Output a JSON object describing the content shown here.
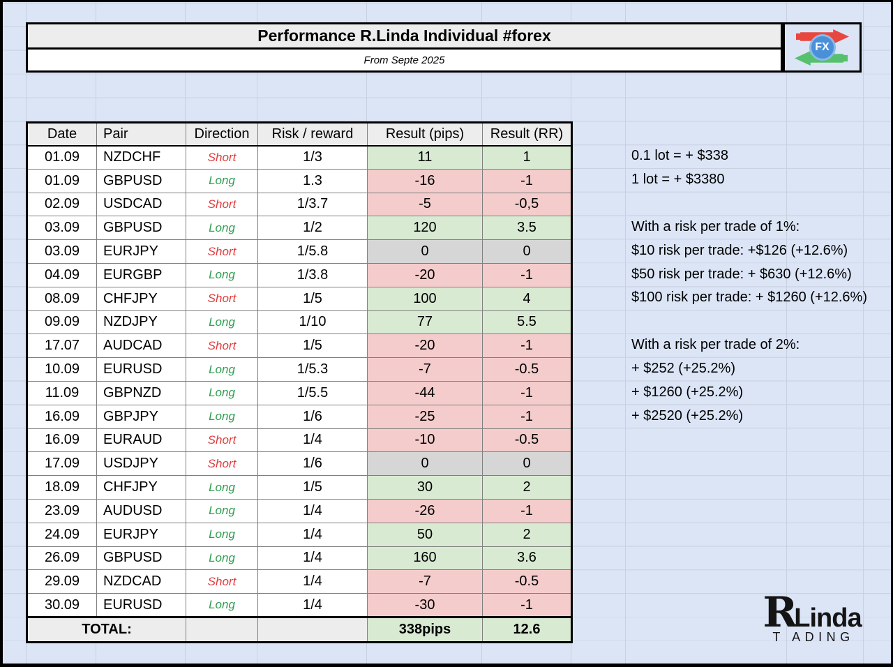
{
  "header": {
    "title": "Performance R.Linda Individual #forex",
    "subtitle": "From Septe 2025",
    "fx_badge": "FX"
  },
  "table": {
    "columns": [
      "Date",
      "Pair",
      "Direction",
      "Risk / reward",
      "Result (pips)",
      "Result (RR)"
    ],
    "rows": [
      {
        "date": "01.09",
        "pair": "NZDCHF",
        "direction": "Short",
        "risk_reward": "1/3",
        "result_pips": "11",
        "result_rr": "1",
        "outcome": "win"
      },
      {
        "date": "01.09",
        "pair": "GBPUSD",
        "direction": "Long",
        "risk_reward": "1.3",
        "result_pips": "-16",
        "result_rr": "-1",
        "outcome": "loss"
      },
      {
        "date": "02.09",
        "pair": "USDCAD",
        "direction": "Short",
        "risk_reward": "1/3.7",
        "result_pips": "-5",
        "result_rr": "-0,5",
        "outcome": "loss"
      },
      {
        "date": "03.09",
        "pair": "GBPUSD",
        "direction": "Long",
        "risk_reward": "1/2",
        "result_pips": "120",
        "result_rr": "3.5",
        "outcome": "win"
      },
      {
        "date": "03.09",
        "pair": "EURJPY",
        "direction": "Short",
        "risk_reward": "1/5.8",
        "result_pips": "0",
        "result_rr": "0",
        "outcome": "breakeven"
      },
      {
        "date": "04.09",
        "pair": "EURGBP",
        "direction": "Long",
        "risk_reward": "1/3.8",
        "result_pips": "-20",
        "result_rr": "-1",
        "outcome": "loss"
      },
      {
        "date": "08.09",
        "pair": "CHFJPY",
        "direction": "Short",
        "risk_reward": "1/5",
        "result_pips": "100",
        "result_rr": "4",
        "outcome": "win"
      },
      {
        "date": "09.09",
        "pair": "NZDJPY",
        "direction": "Long",
        "risk_reward": "1/10",
        "result_pips": "77",
        "result_rr": "5.5",
        "outcome": "win"
      },
      {
        "date": "17.07",
        "pair": "AUDCAD",
        "direction": "Short",
        "risk_reward": "1/5",
        "result_pips": "-20",
        "result_rr": "-1",
        "outcome": "loss"
      },
      {
        "date": "10.09",
        "pair": "EURUSD",
        "direction": "Long",
        "risk_reward": "1/5.3",
        "result_pips": "-7",
        "result_rr": "-0.5",
        "outcome": "loss"
      },
      {
        "date": "11.09",
        "pair": "GBPNZD",
        "direction": "Long",
        "risk_reward": "1/5.5",
        "result_pips": "-44",
        "result_rr": "-1",
        "outcome": "loss"
      },
      {
        "date": "16.09",
        "pair": "GBPJPY",
        "direction": "Long",
        "risk_reward": "1/6",
        "result_pips": "-25",
        "result_rr": "-1",
        "outcome": "loss"
      },
      {
        "date": "16.09",
        "pair": "EURAUD",
        "direction": "Short",
        "risk_reward": "1/4",
        "result_pips": "-10",
        "result_rr": "-0.5",
        "outcome": "loss"
      },
      {
        "date": "17.09",
        "pair": "USDJPY",
        "direction": "Short",
        "risk_reward": "1/6",
        "result_pips": "0",
        "result_rr": "0",
        "outcome": "breakeven"
      },
      {
        "date": "18.09",
        "pair": "CHFJPY",
        "direction": "Long",
        "risk_reward": "1/5",
        "result_pips": "30",
        "result_rr": "2",
        "outcome": "win"
      },
      {
        "date": "23.09",
        "pair": "AUDUSD",
        "direction": "Long",
        "risk_reward": "1/4",
        "result_pips": "-26",
        "result_rr": "-1",
        "outcome": "loss"
      },
      {
        "date": "24.09",
        "pair": "EURJPY",
        "direction": "Long",
        "risk_reward": "1/4",
        "result_pips": "50",
        "result_rr": "2",
        "outcome": "win"
      },
      {
        "date": "26.09",
        "pair": "GBPUSD",
        "direction": "Long",
        "risk_reward": "1/4",
        "result_pips": "160",
        "result_rr": "3.6",
        "outcome": "win"
      },
      {
        "date": "29.09",
        "pair": "NZDCAD",
        "direction": "Short",
        "risk_reward": "1/4",
        "result_pips": "-7",
        "result_rr": "-0.5",
        "outcome": "loss"
      },
      {
        "date": "30.09",
        "pair": "EURUSD",
        "direction": "Long",
        "risk_reward": "1/4",
        "result_pips": "-30",
        "result_rr": "-1",
        "outcome": "loss"
      }
    ],
    "total": {
      "label": "TOTAL:",
      "result_pips": "338pips",
      "result_rr": "12.6"
    }
  },
  "notes": [
    {
      "row": 0,
      "text": "0.1 lot = + $338"
    },
    {
      "row": 1,
      "text": "1 lot = + $3380"
    },
    {
      "row": 3,
      "text": "With a risk per trade of 1%:"
    },
    {
      "row": 4,
      "text": "$10 risk per trade: +$126 (+12.6%)"
    },
    {
      "row": 5,
      "text": "$50 risk per trade: + $630 (+12.6%)"
    },
    {
      "row": 6,
      "text": "$100 risk per trade: + $1260 (+12.6%)"
    },
    {
      "row": 8,
      "text": "With a risk per trade of 2%:"
    },
    {
      "row": 9,
      "text": "+ $252 (+25.2%)"
    },
    {
      "row": 10,
      "text": "+ $1260 (+25.2%)"
    },
    {
      "row": 11,
      "text": "+ $2520 (+25.2%)"
    }
  ],
  "branding": {
    "big_r": "R",
    "linda": "Linda",
    "trading": "T ADING"
  },
  "colors": {
    "page_bg": "#dbe5f6",
    "gridline": "#c9d1e0",
    "header_gray": "#ededed",
    "win_bg": "#d9ead3",
    "loss_bg": "#f4cccc",
    "breakeven_bg": "#d6d6d6",
    "short_text": "#e03b3b",
    "long_text": "#2f9e50",
    "arrow_red": "#e8473f",
    "arrow_green": "#57c06e",
    "fx_blue": "#4a90d9"
  }
}
